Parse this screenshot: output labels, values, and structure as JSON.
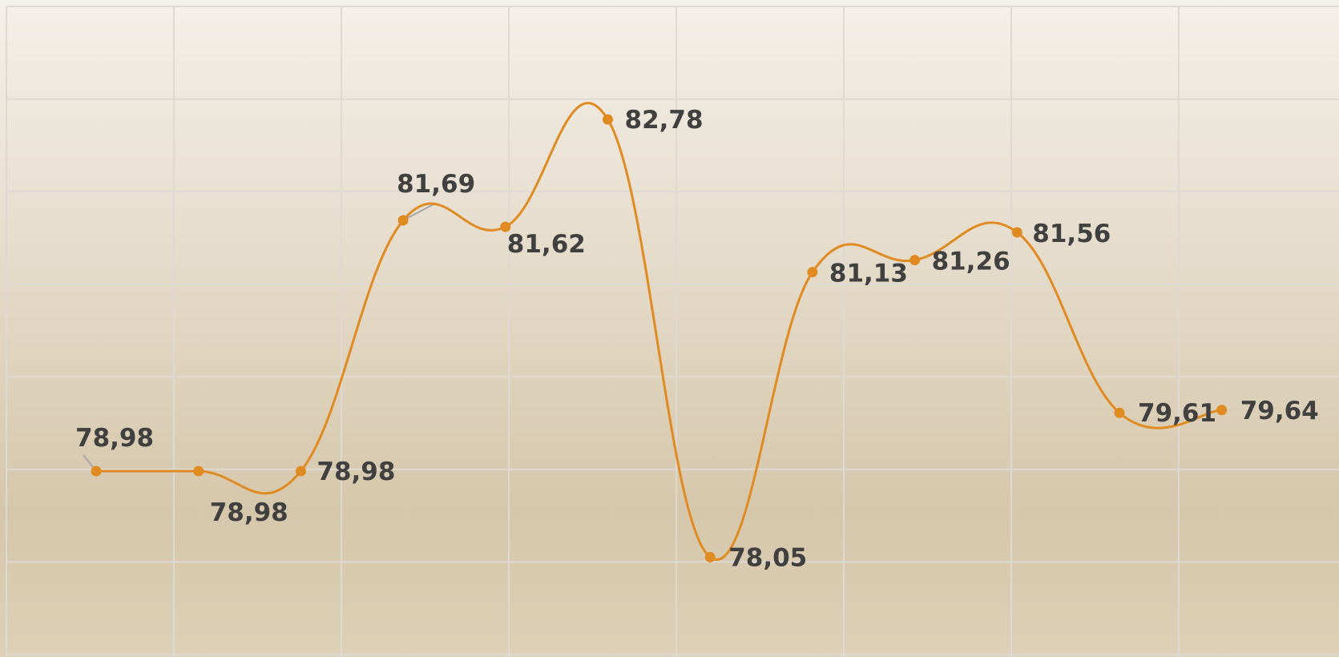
{
  "chart_data": {
    "type": "line",
    "smooth": true,
    "values": [
      78.98,
      78.98,
      78.98,
      81.69,
      81.62,
      82.78,
      78.05,
      81.13,
      81.26,
      81.56,
      79.61,
      79.64
    ],
    "data_labels": [
      "78,98",
      "78,98",
      "78,98",
      "81,69",
      "81,62",
      "82,78",
      "78,05",
      "81,13",
      "81,26",
      "81,56",
      "79,61",
      "79,64"
    ],
    "ylim": [
      77.5,
      84.5
    ],
    "y_gridline_step": 1,
    "x_gridline_count": 8,
    "grid": true,
    "legend": "none",
    "title": "",
    "xlabel": "",
    "ylabel": ""
  },
  "colors": {
    "line": "#E08A22",
    "marker": "#E08A22",
    "grid": "#DEDAD3",
    "label": "#404040",
    "leader": "#A6A6A6",
    "background_top": "#F4F0EA",
    "background_bottom": "#D6C7AB"
  }
}
